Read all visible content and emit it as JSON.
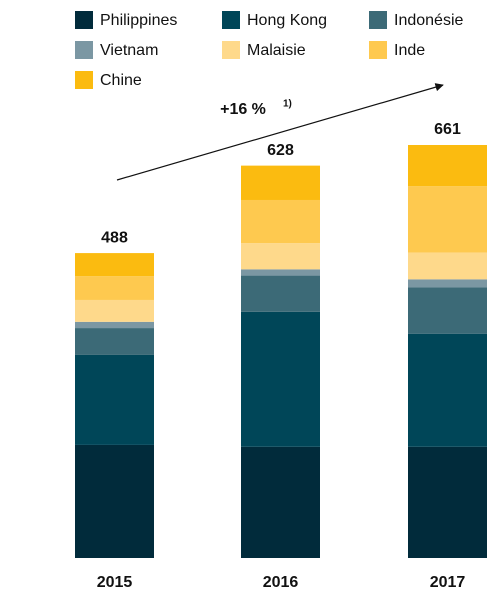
{
  "chart_data": {
    "type": "stacked-bar",
    "annotation": "+16 %",
    "annotation_note": "1)",
    "categories": [
      "2015",
      "2016",
      "2017"
    ],
    "totals": [
      488,
      628,
      661
    ],
    "series": [
      {
        "name": "Philippines",
        "color": "#012b3b",
        "values": [
          181,
          178,
          178
        ]
      },
      {
        "name": "Hong Kong",
        "color": "#004658",
        "values": [
          144,
          216,
          181
        ]
      },
      {
        "name": "Indonésie",
        "color": "#3c6a77",
        "values": [
          43,
          58,
          74
        ]
      },
      {
        "name": "Vietnam",
        "color": "#7b97a3",
        "values": [
          10,
          10,
          13
        ]
      },
      {
        "name": "Malaisie",
        "color": "#fed98b",
        "values": [
          35,
          42,
          43
        ]
      },
      {
        "name": "Inde",
        "color": "#fec94f",
        "values": [
          38,
          69,
          106
        ]
      },
      {
        "name": "Chine",
        "color": "#fbbb10",
        "values": [
          37,
          55,
          66
        ]
      }
    ]
  }
}
